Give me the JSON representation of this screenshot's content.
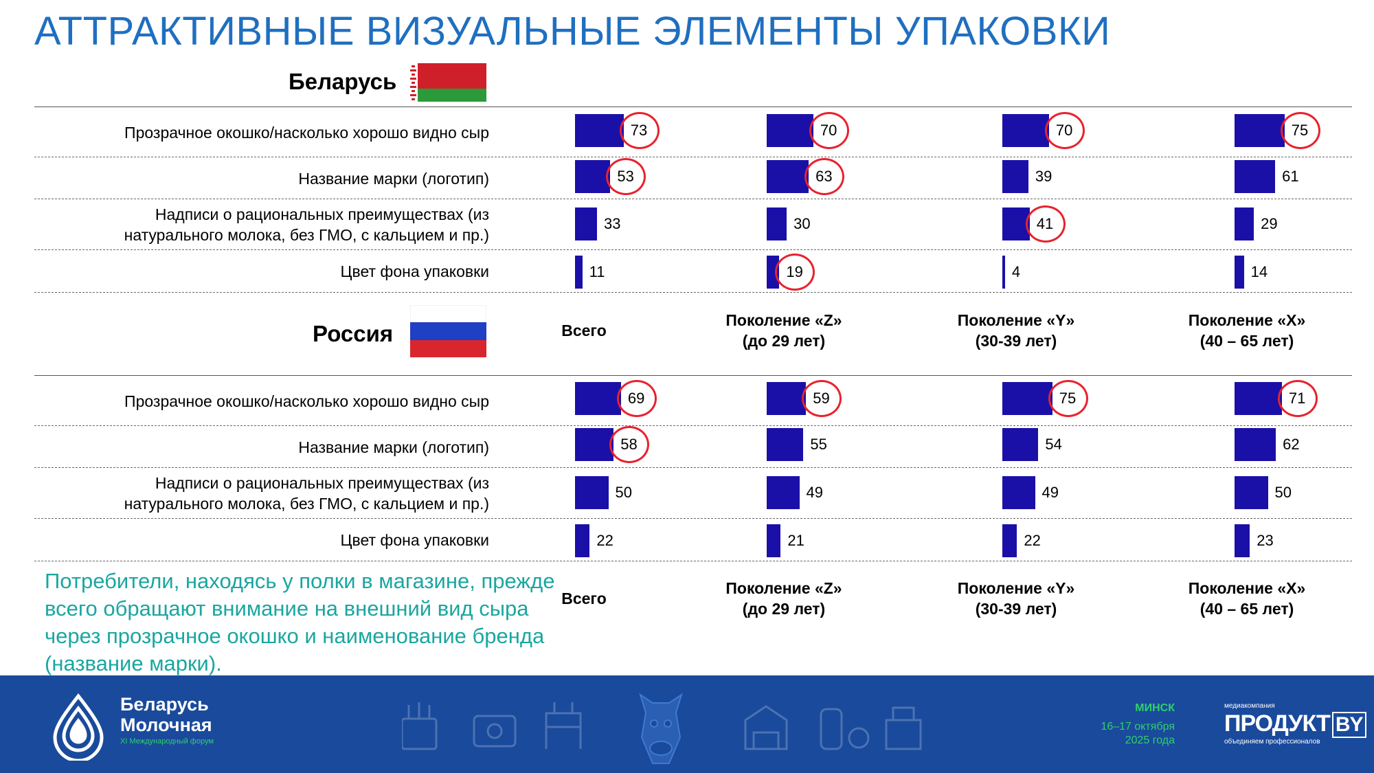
{
  "title": "АТТРАКТИВНЫЕ ВИЗУАЛЬНЫЕ ЭЛЕМЕНТЫ УПАКОВКИ",
  "categories": [
    "Прозрачное окошко/насколько хорошо видно сыр",
    "Название марки (логотип)",
    "Надписи о рациональных преимуществах (из натурального молока, без ГМО, с кальцием и пр.)",
    "Цвет фона упаковки"
  ],
  "label_lines": [
    [
      "Прозрачное окошко/насколько хорошо видно сыр"
    ],
    [
      "Название марки (логотип)"
    ],
    [
      "Надписи о рациональных преимуществах (из",
      "натурального молока, без ГМО, с кальцием и пр.)"
    ],
    [
      "Цвет фона упаковки"
    ]
  ],
  "column_headers": [
    {
      "line1": "Всего",
      "line2": ""
    },
    {
      "line1": "Поколение «Z»",
      "line2": "(до 29 лет)"
    },
    {
      "line1": "Поколение «Y»",
      "line2": "(30-39 лет)"
    },
    {
      "line1": "Поколение «X»",
      "line2": "(40 – 65 лет)"
    }
  ],
  "colors": {
    "bar": "#1a10a8",
    "highlight": "#e8222e",
    "title": "#1f6fc0",
    "note": "#1aa6a0",
    "footer": "#1a4a9c"
  },
  "chart_data": [
    {
      "type": "bar",
      "country": "Беларусь",
      "flag": "belarus-flag",
      "categories": [
        "Прозрачное окошко/насколько хорошо видно сыр",
        "Название марки (логотип)",
        "Надписи о рациональных преимуществах (из натурального молока, без ГМО, с кальцием и пр.)",
        "Цвет фона упаковки"
      ],
      "series": [
        {
          "name": "Всего",
          "values": [
            73,
            53,
            33,
            11
          ],
          "highlighted": [
            true,
            true,
            false,
            false
          ]
        },
        {
          "name": "Поколение «Z» (до 29 лет)",
          "values": [
            70,
            63,
            30,
            19
          ],
          "highlighted": [
            true,
            true,
            false,
            true
          ]
        },
        {
          "name": "Поколение «Y» (30-39 лет)",
          "values": [
            70,
            39,
            41,
            4
          ],
          "highlighted": [
            true,
            false,
            true,
            false
          ]
        },
        {
          "name": "Поколение «X» (40 – 65 лет)",
          "values": [
            75,
            61,
            29,
            14
          ],
          "highlighted": [
            true,
            false,
            false,
            false
          ]
        }
      ]
    },
    {
      "type": "bar",
      "country": "Россия",
      "flag": "russia-flag",
      "categories": [
        "Прозрачное окошко/насколько хорошо видно сыр",
        "Название марки (логотип)",
        "Надписи о рациональных преимуществах (из натурального молока, без ГМО, с кальцием и пр.)",
        "Цвет фона упаковки"
      ],
      "series": [
        {
          "name": "Всего",
          "values": [
            69,
            58,
            50,
            22
          ],
          "highlighted": [
            true,
            true,
            false,
            false
          ]
        },
        {
          "name": "Поколение «Z» (до 29 лет)",
          "values": [
            59,
            55,
            49,
            21
          ],
          "highlighted": [
            true,
            false,
            false,
            false
          ]
        },
        {
          "name": "Поколение «Y» (30-39 лет)",
          "values": [
            75,
            54,
            49,
            22
          ],
          "highlighted": [
            true,
            false,
            false,
            false
          ]
        },
        {
          "name": "Поколение «X» (40 – 65 лет)",
          "values": [
            71,
            62,
            50,
            23
          ],
          "highlighted": [
            true,
            false,
            false,
            false
          ]
        }
      ]
    }
  ],
  "note": "Потребители, находясь у полки в магазине, прежде всего обращают внимание на внешний вид сыра через прозрачное окошко и наименование бренда (название марки).",
  "footer": {
    "brand_line1": "Беларусь",
    "brand_line2": "Молочная",
    "forum": "XI Международный форум",
    "city": "МИНСК",
    "dates_line1": "16–17 октября",
    "dates_line2": "2025 года",
    "company_small": "медиакомпания",
    "company_name": "ПРОДУКТ",
    "company_suffix": "BY",
    "company_tagline": "объединяем профессионалов"
  }
}
